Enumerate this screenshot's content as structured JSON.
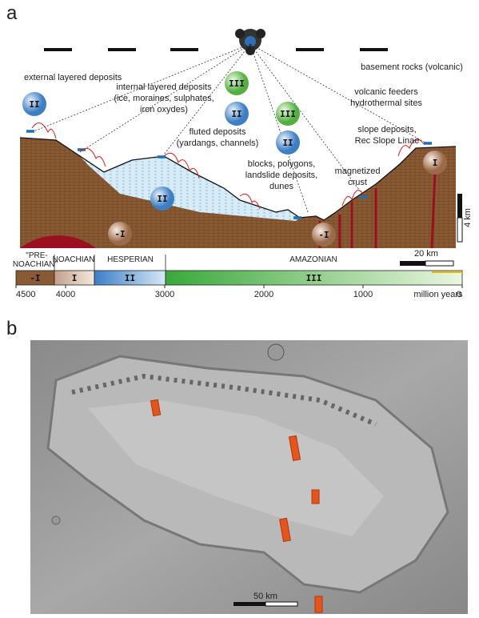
{
  "panel_a": {
    "letter": "a",
    "labels": [
      {
        "lines": [
          "external layered deposits"
        ]
      },
      {
        "lines": [
          "internal layered deposits",
          "(ice, moraines, sulphates,",
          "iron oxydes)"
        ]
      },
      {
        "lines": [
          "fluted deposits",
          "(yardangs, channels)"
        ]
      },
      {
        "lines": [
          "blocks, polygons,",
          "landslide deposits,",
          "dunes"
        ]
      },
      {
        "lines": [
          "magnetized",
          "crust"
        ]
      },
      {
        "lines": [
          "slope deposits,",
          "Rec Slope Linae"
        ]
      },
      {
        "lines": [
          "volcanic feeders",
          "hydrothermal sites"
        ]
      },
      {
        "lines": [
          "basement rocks (volcanic)"
        ]
      }
    ],
    "badges": [
      "II",
      "III",
      "II",
      "III",
      "II",
      "II",
      "-I",
      "-I",
      "I"
    ],
    "vertical_scale": "4 km",
    "horizontal_scale": "20 km",
    "eras": [
      "\"PRE-",
      "NOACHIAN\"",
      "NOACHIAN",
      "HESPERIAN",
      "AMAZONIAN"
    ],
    "timeline_units": [
      "-I",
      "I",
      "II",
      "III"
    ],
    "timeline_ticks": [
      4500,
      4000,
      3000,
      2000,
      1000,
      0
    ],
    "timeline_unit_label": "million years"
  },
  "panel_b": {
    "letter": "b",
    "scale": "50 km"
  }
}
